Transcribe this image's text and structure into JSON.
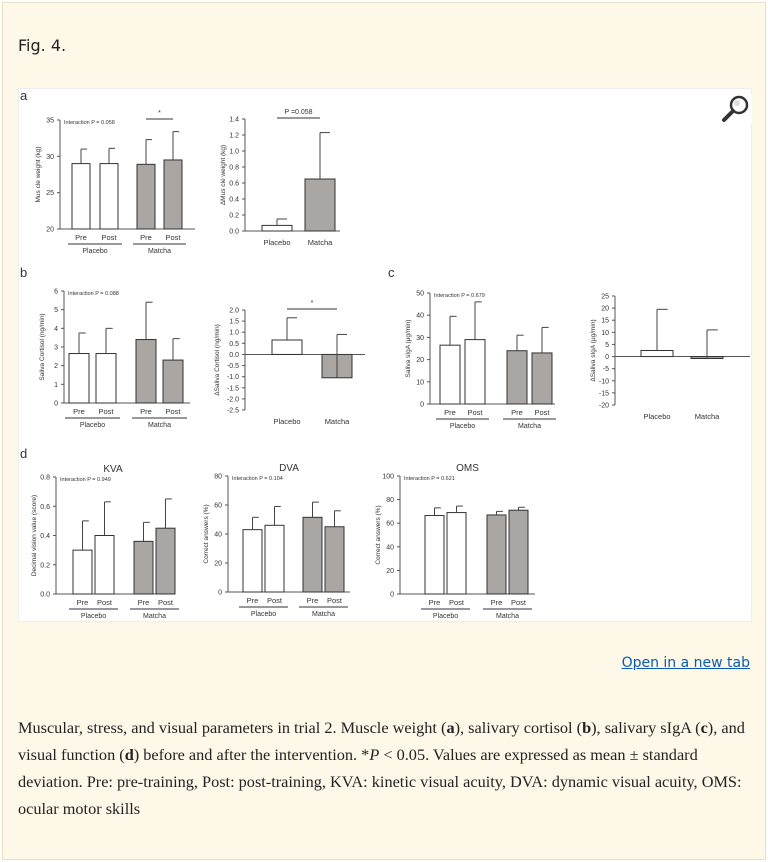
{
  "figure_title": "Fig. 4.",
  "open_link": "Open in a new tab",
  "zoom_icon": "magnifier-icon",
  "caption": {
    "t1": "Muscular, stress, and visual parameters in trial 2. Muscle weight (",
    "a": "a",
    "t2": "), salivary cortisol (",
    "b": "b",
    "t3": "), salivary sIgA (",
    "c": "c",
    "t4": "), and visual function (",
    "d": "d",
    "t5": ") before and after the intervention. *",
    "p": "P",
    "t6": " < 0.05. Values are expressed as mean ± standard deviation. Pre: pre-training, Post: post-training, KVA: kinetic visual acuity, DVA: dynamic visual acuity, OMS: ocular motor skills"
  },
  "panel_labels": [
    "a",
    "b",
    "c",
    "d"
  ],
  "colors": {
    "placebo": "#ffffff",
    "matcha": "#aaa6a3",
    "axis": "#555555"
  },
  "chart_data": [
    {
      "id": "a1",
      "type": "bar",
      "panel": "a",
      "ylabel": "Mus cle weight (kg)",
      "ylim": [
        20,
        35
      ],
      "ticks": [
        20,
        25,
        30,
        35
      ],
      "categories": [
        "Pre",
        "Post",
        "Pre",
        "Post"
      ],
      "groups": [
        "Placebo",
        "Matcha"
      ],
      "values": [
        29.0,
        29.0,
        28.9,
        29.5
      ],
      "sd_top": [
        31.0,
        31.1,
        32.3,
        33.4
      ],
      "fills": [
        "placebo",
        "placebo",
        "matcha",
        "matcha"
      ],
      "annotation": "Interaction P = 0.058",
      "significance": {
        "label": "*",
        "between": [
          2,
          3
        ]
      }
    },
    {
      "id": "a2",
      "type": "bar",
      "panel": "a",
      "ylabel": "ΔMus cle weight (kg)",
      "ylim": [
        0,
        1.4
      ],
      "ticks": [
        0,
        0.2,
        0.4,
        0.6,
        0.8,
        1.0,
        1.2,
        1.4
      ],
      "categories": [
        "Placebo",
        "Matcha"
      ],
      "values": [
        0.07,
        0.65
      ],
      "sd_top": [
        0.15,
        1.23
      ],
      "fills": [
        "placebo",
        "matcha"
      ],
      "significance": {
        "label": "P =0.058",
        "between": [
          0,
          1
        ]
      }
    },
    {
      "id": "b1",
      "type": "bar",
      "panel": "b",
      "ylabel": "Saliva Cortisol (ng/min)",
      "ylim": [
        0,
        6
      ],
      "ticks": [
        0,
        1,
        2,
        3,
        4,
        5,
        6
      ],
      "categories": [
        "Pre",
        "Post",
        "Pre",
        "Post"
      ],
      "groups": [
        "Placebo",
        "Matcha"
      ],
      "values": [
        2.65,
        2.65,
        3.4,
        2.3
      ],
      "sd_top": [
        3.75,
        4.0,
        5.4,
        3.45
      ],
      "fills": [
        "placebo",
        "placebo",
        "matcha",
        "matcha"
      ],
      "annotation": "Interaction P = 0.088"
    },
    {
      "id": "b2",
      "type": "bar",
      "panel": "b",
      "ylabel": "ΔSaliva Cortisol (ng/min)",
      "ylim": [
        -2.5,
        2.0
      ],
      "ticks": [
        -2.5,
        -2.0,
        -1.5,
        -1.0,
        -0.5,
        0.0,
        0.5,
        1.0,
        1.5,
        2.0
      ],
      "categories": [
        "Placebo",
        "Matcha"
      ],
      "values": [
        0.65,
        -1.05
      ],
      "sd_top": [
        1.65,
        0.9
      ],
      "fills": [
        "placebo",
        "matcha"
      ],
      "significance": {
        "label": "*",
        "between": [
          0,
          1
        ]
      }
    },
    {
      "id": "c1",
      "type": "bar",
      "panel": "c",
      "ylabel": "Saliva sIgA (μg/min)",
      "ylim": [
        0,
        50
      ],
      "ticks": [
        0,
        10,
        20,
        30,
        40,
        50
      ],
      "categories": [
        "Pre",
        "Post",
        "Pre",
        "Post"
      ],
      "groups": [
        "Placebo",
        "Matcha"
      ],
      "values": [
        26.5,
        29.0,
        24.0,
        23.0
      ],
      "sd_top": [
        39.5,
        46.0,
        31.0,
        34.5
      ],
      "fills": [
        "placebo",
        "placebo",
        "matcha",
        "matcha"
      ],
      "annotation": "Interaction P = 0.679"
    },
    {
      "id": "c2",
      "type": "bar",
      "panel": "c",
      "ylabel": "ΔSaliva sIgA (μg/min)",
      "ylim": [
        -20,
        25
      ],
      "ticks": [
        -20,
        -15,
        -10,
        -5,
        0,
        5,
        10,
        15,
        20,
        25
      ],
      "categories": [
        "Placebo",
        "Matcha"
      ],
      "values": [
        2.5,
        -0.8
      ],
      "sd_top": [
        19.5,
        11.0
      ],
      "fills": [
        "placebo",
        "matcha"
      ]
    },
    {
      "id": "d1",
      "type": "bar",
      "panel": "d",
      "title": "KVA",
      "ylabel": "Decimal vision value (score)",
      "ylim": [
        0,
        0.8
      ],
      "ticks": [
        0,
        0.2,
        0.4,
        0.6,
        0.8
      ],
      "categories": [
        "Pre",
        "Post",
        "Pre",
        "Post"
      ],
      "groups": [
        "Placebo",
        "Matcha"
      ],
      "values": [
        0.3,
        0.4,
        0.36,
        0.45
      ],
      "sd_top": [
        0.5,
        0.63,
        0.49,
        0.65
      ],
      "fills": [
        "placebo",
        "placebo",
        "matcha",
        "matcha"
      ],
      "annotation": "Interaction P = 0.949"
    },
    {
      "id": "d2",
      "type": "bar",
      "panel": "d",
      "title": "DVA",
      "ylabel": "Correct answers (%)",
      "ylim": [
        0,
        80
      ],
      "ticks": [
        0,
        20,
        40,
        60,
        80
      ],
      "categories": [
        "Pre",
        "Post",
        "Pre",
        "Post"
      ],
      "groups": [
        "Placebo",
        "Matcha"
      ],
      "values": [
        43,
        46,
        51.5,
        45
      ],
      "sd_top": [
        51.5,
        59,
        62,
        56
      ],
      "fills": [
        "placebo",
        "placebo",
        "matcha",
        "matcha"
      ],
      "annotation": "Interaction P = 0.104"
    },
    {
      "id": "d3",
      "type": "bar",
      "panel": "d",
      "title": "OMS",
      "ylabel": "Correct answers (%)",
      "ylim": [
        0,
        100
      ],
      "ticks": [
        0,
        20,
        40,
        60,
        80,
        100
      ],
      "categories": [
        "Pre",
        "Post",
        "Pre",
        "Post"
      ],
      "groups": [
        "Placebo",
        "Matcha"
      ],
      "values": [
        66.5,
        69,
        67,
        71
      ],
      "sd_top": [
        73,
        74.5,
        70,
        73.5
      ],
      "fills": [
        "placebo",
        "placebo",
        "matcha",
        "matcha"
      ],
      "annotation": "Interaction P = 0.621"
    }
  ]
}
